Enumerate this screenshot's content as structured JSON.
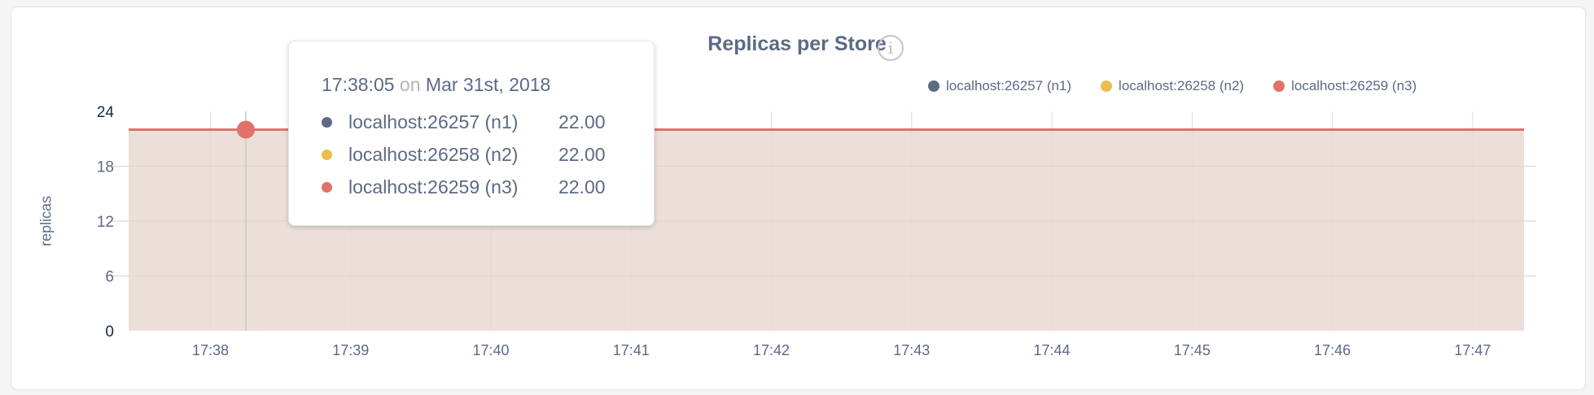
{
  "chart_data": {
    "type": "area",
    "title": "Replicas per Store",
    "ylabel": "replicas",
    "xlabel": "",
    "ylim": [
      0,
      24
    ],
    "yticks": [
      "0",
      "6",
      "12",
      "18",
      "24"
    ],
    "xticks": [
      "17:38",
      "17:39",
      "17:40",
      "17:41",
      "17:42",
      "17:43",
      "17:44",
      "17:45",
      "17:46",
      "17:47"
    ],
    "grid": true,
    "legend_position": "top-right",
    "series": [
      {
        "name": "localhost:26257 (n1)",
        "color": "#5f6b86",
        "values": [
          22,
          22
        ]
      },
      {
        "name": "localhost:26258 (n2)",
        "color": "#e9be4a",
        "values": [
          22,
          22
        ]
      },
      {
        "name": "localhost:26259 (n3)",
        "color": "#e0716b",
        "values": [
          22,
          22
        ]
      }
    ],
    "x_range": [
      "17:37:25",
      "17:47:22"
    ]
  },
  "info_icon": "info-circle-icon",
  "tooltip": {
    "time": "17:38:05",
    "on": "on",
    "date": "Mar 31st, 2018",
    "rows": [
      {
        "label": "localhost:26257 (n1)",
        "value": "22.00",
        "color": "#5f6b86"
      },
      {
        "label": "localhost:26258 (n2)",
        "value": "22.00",
        "color": "#e9be4a"
      },
      {
        "label": "localhost:26259 (n3)",
        "value": "22.00",
        "color": "#e0716b"
      }
    ]
  }
}
